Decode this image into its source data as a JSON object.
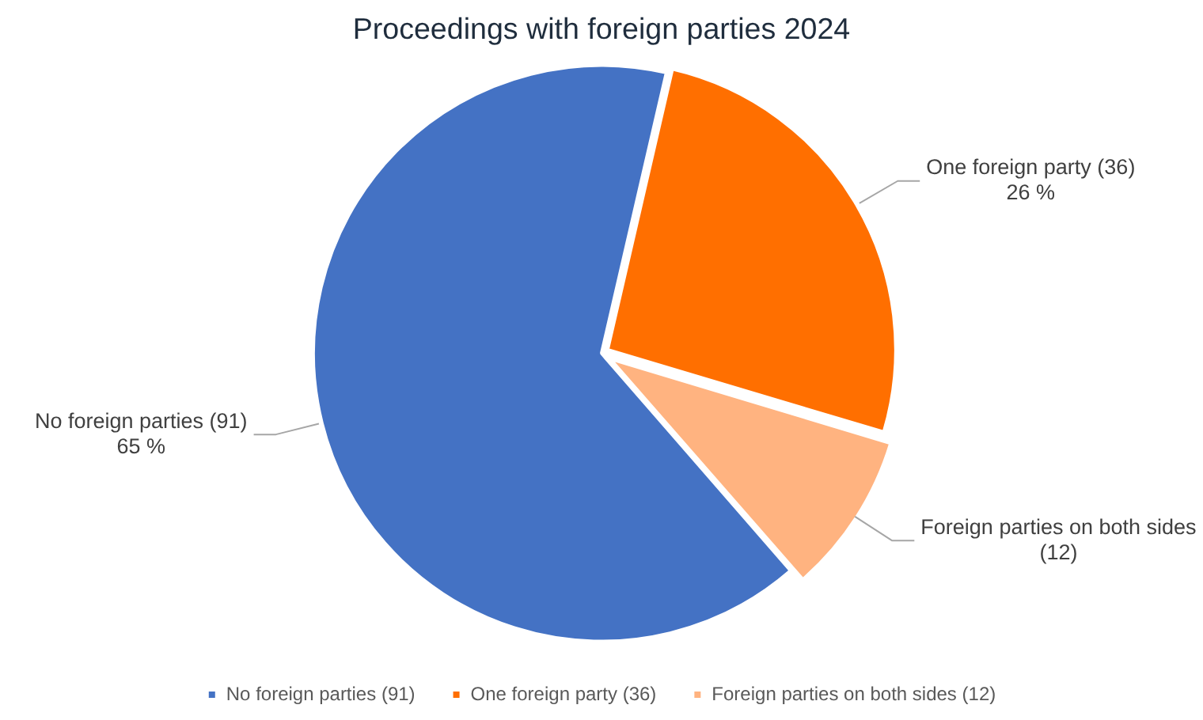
{
  "chart_data": {
    "type": "pie",
    "title": "Proceedings with foreign parties 2024",
    "categories": [
      "No foreign parties (91)",
      "One foreign party (36)",
      "Foreign parties on both sides (12)"
    ],
    "values": [
      65,
      26,
      9
    ],
    "colors": [
      "#4472c4",
      "#ff6f00",
      "#ffb380"
    ],
    "value_labels": [
      "65 %",
      "26 %",
      null
    ],
    "legend": "bottom"
  }
}
